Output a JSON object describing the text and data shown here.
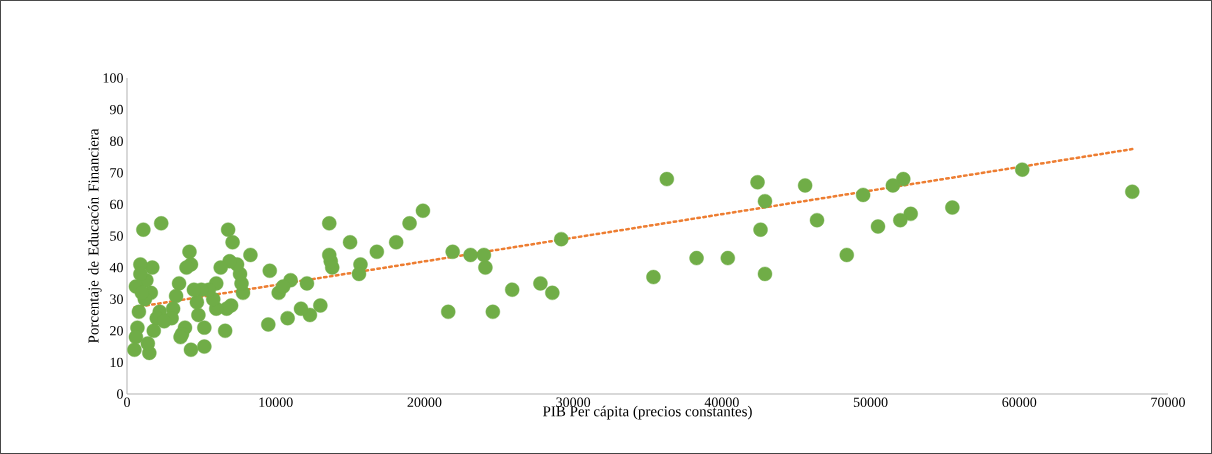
{
  "chart_data": {
    "type": "scatter",
    "xlabel": "PIB Per cápita (precios constantes)",
    "ylabel": "Porcentaje de Educacón Financiera",
    "xlim": [
      0,
      70000
    ],
    "ylim": [
      0,
      100
    ],
    "xticks": [
      0,
      10000,
      20000,
      30000,
      40000,
      50000,
      60000,
      70000
    ],
    "yticks": [
      0,
      10,
      20,
      30,
      40,
      50,
      60,
      70,
      80,
      90,
      100
    ],
    "grid": false,
    "series": [
      {
        "color": "#70ad47",
        "marker": "circle",
        "x": [
          67600,
          60200,
          55500,
          52700,
          52000,
          52200,
          51500,
          50500,
          49500,
          48400,
          46400,
          45600,
          42900,
          42900,
          42600,
          42400,
          40400,
          38300,
          36300,
          35400,
          29200,
          28600,
          27800,
          25900,
          24600,
          24100,
          24000,
          23100,
          21900,
          21600,
          19900,
          19000,
          18100,
          16800,
          15700,
          15600,
          15000,
          13800,
          13700,
          13600,
          13600,
          13000,
          12300,
          12100,
          11700,
          11000,
          10800,
          10200,
          10500,
          9600,
          9500,
          8300,
          7800,
          7700,
          7600,
          7400,
          7100,
          6900,
          6800,
          7000,
          6700,
          6600,
          6300,
          6000,
          6000,
          5800,
          5500,
          5200,
          5200,
          5000,
          4800,
          4700,
          4500,
          4300,
          4300,
          4200,
          4000,
          3900,
          3700,
          3600,
          3500,
          3300,
          3100,
          3000,
          2300,
          2200,
          2000,
          1700,
          1600,
          1500,
          1300,
          1100,
          900,
          800,
          700,
          600,
          600,
          500,
          1200,
          1800,
          2500,
          1400,
          900,
          1000
        ],
        "values": [
          64,
          71,
          59,
          57,
          55,
          68,
          66,
          53,
          63,
          44,
          55,
          66,
          61,
          38,
          52,
          67,
          43,
          43,
          68,
          37,
          49,
          32,
          35,
          33,
          26,
          40,
          44,
          44,
          45,
          26,
          58,
          54,
          48,
          45,
          41,
          38,
          48,
          40,
          42,
          44,
          54,
          28,
          25,
          35,
          27,
          36,
          24,
          32,
          34,
          39,
          22,
          44,
          32,
          35,
          38,
          41,
          48,
          42,
          52,
          28,
          27,
          20,
          40,
          35,
          27,
          30,
          33,
          21,
          15,
          33,
          25,
          29,
          33,
          14,
          41,
          45,
          40,
          21,
          19,
          18,
          35,
          31,
          27,
          24,
          54,
          26,
          24,
          40,
          32,
          13,
          36,
          52,
          41,
          26,
          21,
          34,
          18,
          14,
          30,
          20,
          23,
          16,
          38,
          32
        ]
      },
      {
        "type": "line",
        "color": "#ed7d31",
        "marker": "none",
        "line_style": "dotted",
        "x": [
          500,
          67600
        ],
        "values": [
          27.4,
          77.5
        ]
      }
    ]
  }
}
